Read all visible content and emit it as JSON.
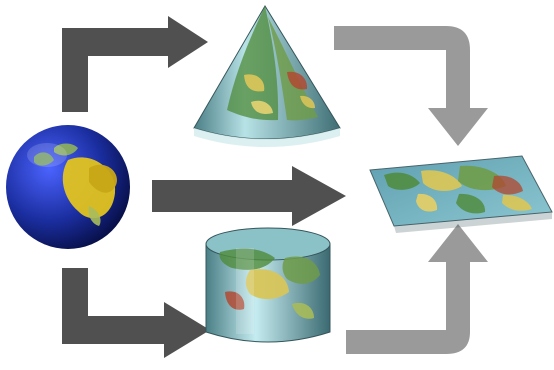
{
  "diagram": {
    "type": "map-projection-overview",
    "nodes": [
      {
        "id": "globe",
        "shape": "sphere"
      },
      {
        "id": "cone",
        "shape": "conic-projection-surface"
      },
      {
        "id": "cylinder",
        "shape": "cylindrical-projection-surface"
      },
      {
        "id": "flat-map",
        "shape": "planar-map"
      }
    ],
    "edges": [
      {
        "from": "globe",
        "to": "cone",
        "color": "#505050"
      },
      {
        "from": "globe",
        "to": "flat-map",
        "color": "#505050"
      },
      {
        "from": "globe",
        "to": "cylinder",
        "color": "#505050"
      },
      {
        "from": "cone",
        "to": "flat-map",
        "color": "#9a9a9a"
      },
      {
        "from": "cylinder",
        "to": "flat-map",
        "color": "#9a9a9a"
      }
    ],
    "colors": {
      "ocean": "#5f9fb0",
      "land_green": "#4f8b3a",
      "land_yellow": "#d7c55a",
      "land_red": "#b04a32",
      "globe_ocean": "#1a2d9a",
      "globe_land": "#e1c320",
      "dark_arrow": "#505050",
      "light_arrow": "#9a9a9a"
    }
  }
}
